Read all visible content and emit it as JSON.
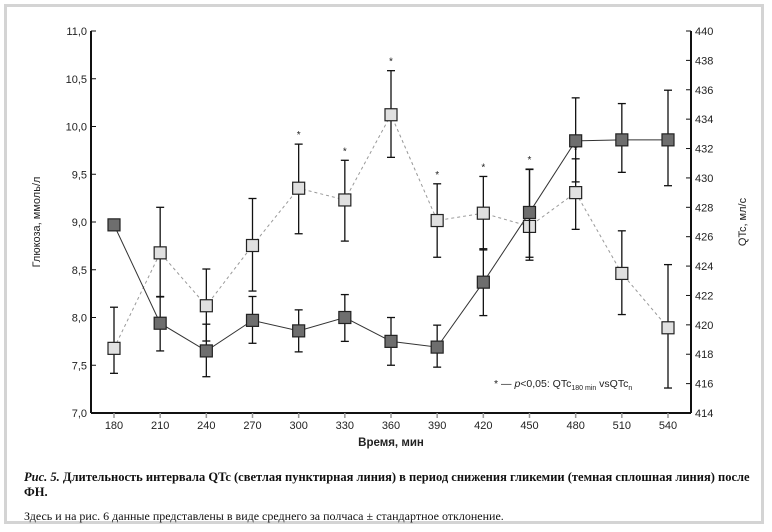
{
  "chart_data": {
    "type": "line",
    "x": [
      180,
      210,
      240,
      270,
      300,
      330,
      360,
      390,
      420,
      450,
      480,
      510,
      540
    ],
    "xlabel": "Время, мин",
    "xlim": [
      165,
      555
    ],
    "ylabel_left": "Глюкоза, ммоль/л",
    "ylim_left": [
      7.0,
      11.0
    ],
    "yticks_left": [
      "7,0",
      "7,5",
      "8,0",
      "8,5",
      "9,0",
      "9,5",
      "10,0",
      "10,5",
      "11,0"
    ],
    "ylabel_right": "QTc, мл/с",
    "ylim_right": [
      414,
      440
    ],
    "yticks_right": [
      "414",
      "416",
      "418",
      "420",
      "422",
      "424",
      "426",
      "428",
      "430",
      "432",
      "434",
      "436",
      "438",
      "440"
    ],
    "series": [
      {
        "name": "Глюкоза (темная сплошная линия)",
        "axis": "left",
        "color": "#6e6e6e",
        "line": "solid",
        "values": [
          8.97,
          7.94,
          7.65,
          7.97,
          7.86,
          8.0,
          7.75,
          7.69,
          8.37,
          9.1,
          9.85,
          9.86,
          9.86
        ],
        "err_low": [
          null,
          7.65,
          7.38,
          7.73,
          7.64,
          7.75,
          7.5,
          7.48,
          8.02,
          8.6,
          9.42,
          9.52,
          9.38
        ],
        "err_high": [
          null,
          8.22,
          7.93,
          8.22,
          8.08,
          8.24,
          8.0,
          7.92,
          8.72,
          9.55,
          10.3,
          10.24,
          10.38
        ]
      },
      {
        "name": "QTc (светлая пунктирная линия)",
        "axis": "right",
        "color": "#e0e0e0",
        "line": "dashed",
        "values": [
          418.4,
          424.9,
          421.3,
          425.4,
          429.3,
          428.5,
          434.3,
          427.1,
          427.6,
          426.7,
          429.0,
          423.5,
          419.8
        ],
        "err_low": [
          416.7,
          421.9,
          418.9,
          422.3,
          426.2,
          425.7,
          431.4,
          424.6,
          425.1,
          424.6,
          426.5,
          420.7,
          415.7
        ],
        "err_high": [
          421.2,
          428.0,
          423.8,
          428.6,
          432.3,
          431.2,
          437.3,
          429.6,
          430.1,
          430.6,
          431.3,
          426.4,
          424.1
        ],
        "significant": [
          false,
          false,
          false,
          false,
          true,
          true,
          true,
          true,
          true,
          true,
          true,
          false,
          false
        ]
      }
    ],
    "annotation": {
      "star": "*",
      "dash": " — ",
      "p": "p",
      "text": "<0,05: QTc",
      "sub1": "180 min",
      "vs": " vsQTc",
      "sub2": "n"
    },
    "grid": false
  },
  "caption": {
    "label": "Рис. 5.",
    "title": " Длительность интервала QTc (светлая пунктирная линия) в период снижения гликемии (темная сплошная линия) после ФН.",
    "note": "Здесь и на рис. 6 данные представлены в виде среднего за полчаса ± стандартное отклонение."
  }
}
